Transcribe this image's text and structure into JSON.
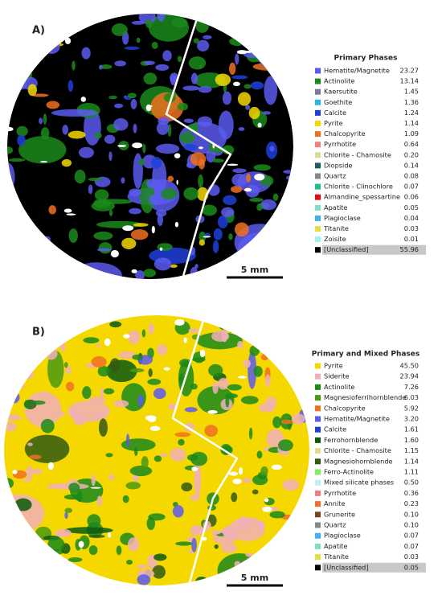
{
  "panels": [
    {
      "label": "A)",
      "scale_bar": "5 mm",
      "legend_title": "Primary Phases",
      "rows": [
        {
          "name": "Hematite/Magnetite",
          "value": "23.27",
          "color": "#5b5bf0"
        },
        {
          "name": "Actinolite",
          "value": "13.14",
          "color": "#1a8a1a"
        },
        {
          "name": "Kaersutite",
          "value": "1.45",
          "color": "#7a7a9a"
        },
        {
          "name": "Goethite",
          "value": "1.36",
          "color": "#2ab7e8"
        },
        {
          "name": "Calcite",
          "value": "1.24",
          "color": "#1f3fd8"
        },
        {
          "name": "Pyrite",
          "value": "1.14",
          "color": "#f5d800"
        },
        {
          "name": "Chalcopyrite",
          "value": "1.09",
          "color": "#f07020"
        },
        {
          "name": "Pyrrhotite",
          "value": "0.64",
          "color": "#f08080"
        },
        {
          "name": "Chlorite - Chamosite",
          "value": "0.20",
          "color": "#d8e090"
        },
        {
          "name": "Diopside",
          "value": "0.14",
          "color": "#1a6060"
        },
        {
          "name": "Quartz",
          "value": "0.08",
          "color": "#888888"
        },
        {
          "name": "Chlorite - Clinochlore",
          "value": "0.07",
          "color": "#20c080"
        },
        {
          "name": "Almandine_spessartine",
          "value": "0.06",
          "color": "#e01010"
        },
        {
          "name": "Apatite",
          "value": "0.05",
          "color": "#80e0c0"
        },
        {
          "name": "Plagioclase",
          "value": "0.04",
          "color": "#40b0f0"
        },
        {
          "name": "Titanite",
          "value": "0.03",
          "color": "#e0e040"
        },
        {
          "name": "Zoisite",
          "value": "0.01",
          "color": "#a0f0f0"
        },
        {
          "name": "[Unclassified]",
          "value": "55.96",
          "color": "#000000"
        }
      ]
    },
    {
      "label": "B)",
      "scale_bar": "5 mm",
      "legend_title": "Primary and Mixed Phases",
      "rows": [
        {
          "name": "Pyrite",
          "value": "45.50",
          "color": "#f5d800"
        },
        {
          "name": "Siderite",
          "value": "23.94",
          "color": "#f0b0b8"
        },
        {
          "name": "Actinolite",
          "value": "7.26",
          "color": "#1a8a1a"
        },
        {
          "name": "Magnesioferrihornblende",
          "value": "6.03",
          "color": "#4a9a10"
        },
        {
          "name": "Chalcopyrite",
          "value": "5.92",
          "color": "#f07020"
        },
        {
          "name": "Hematite/Magnetite",
          "value": "3.20",
          "color": "#5b5bf0"
        },
        {
          "name": "Calcite",
          "value": "1.61",
          "color": "#1f3fd8"
        },
        {
          "name": "Ferrohornblende",
          "value": "1.60",
          "color": "#0a5a10"
        },
        {
          "name": "Chlorite - Chamosite",
          "value": "1.15",
          "color": "#d8e090"
        },
        {
          "name": "Magnesiohornblende",
          "value": "1.14",
          "color": "#305a10"
        },
        {
          "name": "Ferro-Actinolite",
          "value": "1.11",
          "color": "#80f060"
        },
        {
          "name": "Mixed silicate phases",
          "value": "0.50",
          "color": "#c0f0f0"
        },
        {
          "name": "Pyrrhotite",
          "value": "0.36",
          "color": "#f08080"
        },
        {
          "name": "Annite",
          "value": "0.23",
          "color": "#f07030"
        },
        {
          "name": "Grunerite",
          "value": "0.10",
          "color": "#804020"
        },
        {
          "name": "Quartz",
          "value": "0.10",
          "color": "#888888"
        },
        {
          "name": "Plagioclase",
          "value": "0.07",
          "color": "#40b0f0"
        },
        {
          "name": "Apatite",
          "value": "0.07",
          "color": "#80e0c0"
        },
        {
          "name": "Titanite",
          "value": "0.03",
          "color": "#e0e040"
        },
        {
          "name": "[Unclassified]",
          "value": "0.05",
          "color": "#000000"
        }
      ]
    }
  ]
}
